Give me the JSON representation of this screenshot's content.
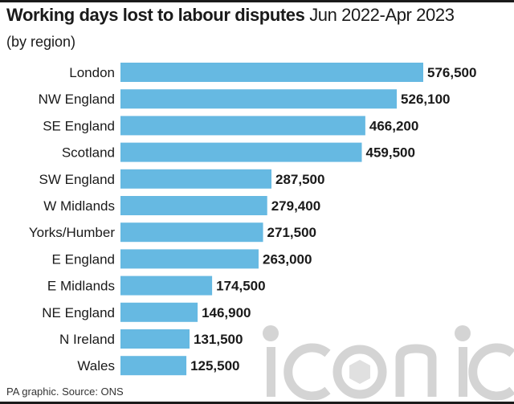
{
  "header": {
    "title_bold": "Working days lost to labour disputes",
    "title_rest": "Jun 2022-Apr 2023",
    "subtitle": "(by region)"
  },
  "footer": {
    "source": "PA graphic. Source: ONS"
  },
  "watermark": {
    "text": "iconic"
  },
  "colors": {
    "bar": "#66b9e2",
    "text": "#1a1a1a",
    "watermark": "#d4d4d4"
  },
  "chart_data": {
    "type": "bar",
    "orientation": "horizontal",
    "title": "Working days lost to labour disputes Jun 2022-Apr 2023",
    "subtitle": "(by region)",
    "categories": [
      "London",
      "NW England",
      "SE England",
      "Scotland",
      "SW England",
      "W Midlands",
      "Yorks/Humber",
      "E England",
      "E Midlands",
      "NE England",
      "N Ireland",
      "Wales"
    ],
    "values": [
      576500,
      526100,
      466200,
      459500,
      287500,
      279400,
      271500,
      263000,
      174500,
      146900,
      131500,
      125500
    ],
    "labels": [
      "576,500",
      "526,100",
      "466,200",
      "459,500",
      "287,500",
      "279,400",
      "271,500",
      "263,000",
      "174,500",
      "146,900",
      "131,500",
      "125,500"
    ],
    "xlim": [
      0,
      576500
    ],
    "grid": false,
    "legend": "none"
  }
}
